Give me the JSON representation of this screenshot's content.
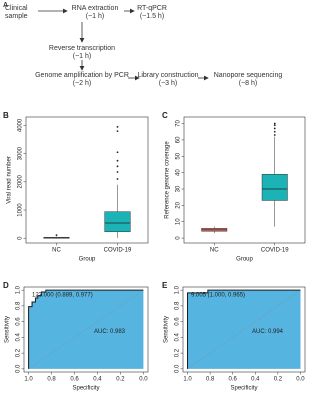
{
  "flowchart": {
    "label": "A",
    "nodes": [
      {
        "lines": [
          "Clinical",
          "sample"
        ]
      },
      {
        "lines": [
          "RNA extraction",
          "(~1 h)"
        ]
      },
      {
        "lines": [
          "RT-qPCR",
          "(~1.5 h)"
        ]
      },
      {
        "lines": [
          "Reverse transcription",
          "(~1 h)"
        ]
      },
      {
        "lines": [
          "Genome amplification by PCR",
          "(~2 h)"
        ]
      },
      {
        "lines": [
          "Library construction",
          "(~3 h)"
        ]
      },
      {
        "lines": [
          "Nanopore sequencing",
          "(~8 h)"
        ]
      }
    ]
  },
  "chart_data": [
    {
      "type": "box",
      "label": "B",
      "ylabel": "Viral read number",
      "xlabel": "Group",
      "categories": [
        "NC",
        "COVID-19"
      ],
      "colors": [
        "#e8746b",
        "#1bb3b5"
      ],
      "ylim": [
        -170,
        4300
      ],
      "yticks": [
        0,
        1000,
        2000,
        3000,
        4000
      ],
      "boxes": [
        {
          "min": 0,
          "q1": 5,
          "median": 10,
          "q3": 30,
          "max": 60,
          "outliers": [
            110
          ]
        },
        {
          "min": 10,
          "q1": 230,
          "median": 540,
          "q3": 940,
          "max": 1900,
          "outliers": [
            2100,
            2350,
            2550,
            2750,
            3050,
            3800,
            3950
          ]
        }
      ]
    },
    {
      "type": "box",
      "label": "C",
      "ylabel": "Reference genome coverage",
      "xlabel": "Group",
      "categories": [
        "NC",
        "COVID-19"
      ],
      "colors": [
        "#e8746b",
        "#1bb3b5"
      ],
      "ylim": [
        -3,
        74
      ],
      "yticks": [
        0,
        10,
        20,
        30,
        40,
        50,
        60,
        70
      ],
      "boxes": [
        {
          "min": 3,
          "q1": 4.2,
          "median": 5,
          "q3": 6,
          "max": 7,
          "outliers": []
        },
        {
          "min": 7,
          "q1": 23,
          "median": 30,
          "q3": 39,
          "max": 62,
          "outliers": [
            63,
            65,
            67,
            69,
            70
          ]
        }
      ]
    },
    {
      "type": "roc",
      "label": "D",
      "xlabel": "Specificity",
      "ylabel": "Sensitivity",
      "xlim": [
        1.04,
        -0.04
      ],
      "ylim": [
        -0.04,
        1.04
      ],
      "xticks": [
        {
          "value": 1,
          "label": "1.0"
        },
        0.8,
        0.6,
        0.4,
        0.2,
        {
          "value": 0,
          "label": "0.0"
        }
      ],
      "yticks": [
        {
          "value": 0,
          "label": "0.0"
        },
        0.2,
        0.4,
        0.6,
        0.8,
        {
          "value": 1,
          "label": "1.0"
        }
      ],
      "x": [
        1,
        1,
        0.97,
        0.97,
        0.94,
        0.94,
        0.92,
        0.92,
        0.889,
        0.889,
        0.85,
        0.85,
        0
      ],
      "y": [
        0,
        0.79,
        0.79,
        0.85,
        0.85,
        0.9,
        0.9,
        0.93,
        0.93,
        0.977,
        0.977,
        1,
        1
      ],
      "color": "#1a1a1a",
      "fill": "#56b4e0",
      "threshold_label": "123.000 (0.889, 0.977)",
      "auc_label": "AUC: 0.983"
    },
    {
      "type": "roc",
      "label": "E",
      "xlabel": "Specificity",
      "ylabel": "Sensitivity",
      "xlim": [
        1.04,
        -0.04
      ],
      "ylim": [
        -0.04,
        1.04
      ],
      "xticks": [
        {
          "value": 1,
          "label": "1.0"
        },
        0.8,
        0.6,
        0.4,
        0.2,
        {
          "value": 0,
          "label": "0.0"
        }
      ],
      "yticks": [
        {
          "value": 0,
          "label": "0.0"
        },
        0.2,
        0.4,
        0.6,
        0.8,
        {
          "value": 1,
          "label": "1.0"
        }
      ],
      "x": [
        1,
        1,
        0.82,
        0.82,
        0
      ],
      "y": [
        0,
        0.965,
        0.965,
        1,
        1
      ],
      "color": "#1a1a1a",
      "fill": "#56b4e0",
      "threshold_label": "9.005 (1.000, 0.965)",
      "auc_label": "AUC: 0.994"
    }
  ]
}
